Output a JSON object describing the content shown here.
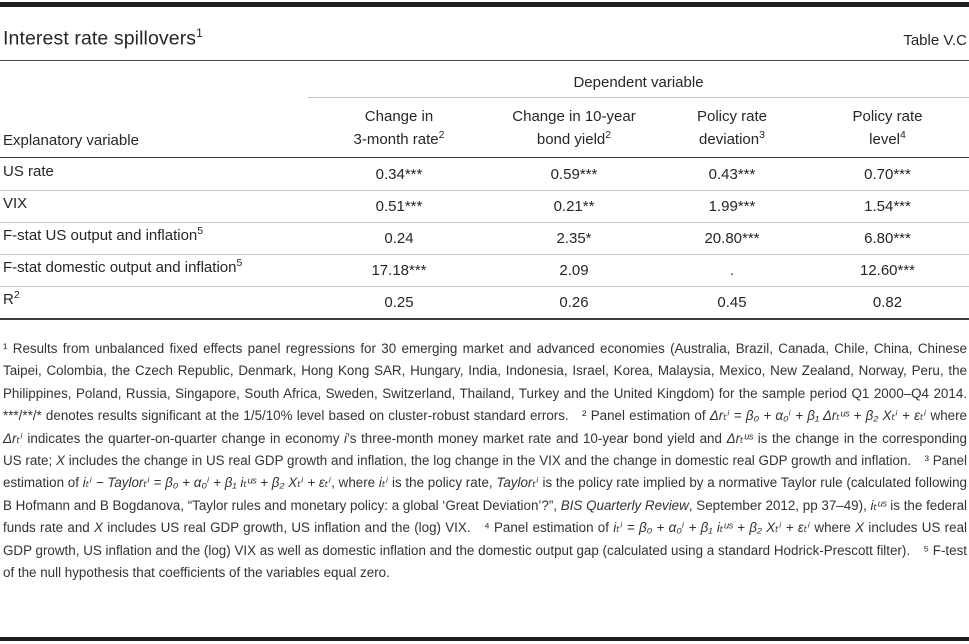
{
  "header": {
    "title": "Interest rate spillovers",
    "title_sup": "1",
    "table_label": "Table V.C"
  },
  "table": {
    "group_header": "Dependent variable",
    "row_header_label": "Explanatory variable",
    "columns": [
      {
        "line1": "Change in",
        "line2": "3-month rate",
        "sup": "2"
      },
      {
        "line1": "Change in 10-year",
        "line2": "bond yield",
        "sup": "2"
      },
      {
        "line1": "Policy rate",
        "line2": "deviation",
        "sup": "3"
      },
      {
        "line1": "Policy rate",
        "line2": "level",
        "sup": "4"
      }
    ],
    "rows": [
      {
        "label": "US rate",
        "sup": "",
        "values": [
          "0.34***",
          "0.59***",
          "0.43***",
          "0.70***"
        ]
      },
      {
        "label": "VIX",
        "sup": "",
        "values": [
          "0.51***",
          "0.21**",
          "1.99***",
          "1.54***"
        ]
      },
      {
        "label": "F-stat US output and inflation",
        "sup": "5",
        "values": [
          "0.24",
          "2.35*",
          "20.80***",
          "6.80***"
        ]
      },
      {
        "label": "F-stat domestic output and inflation",
        "sup": "5",
        "values": [
          "17.18***",
          "2.09",
          ".",
          "12.60***"
        ]
      },
      {
        "label": "R",
        "sup": "2",
        "values": [
          "0.25",
          "0.26",
          "0.45",
          "0.82"
        ]
      }
    ]
  },
  "footnotes": {
    "segments": [
      {
        "italic": false,
        "text": "¹  Results from unbalanced fixed effects panel regressions for 30 emerging market and advanced economies (Australia, Brazil, Canada, Chile, China, Chinese Taipei, Colombia, the Czech Republic, Denmark, Hong Kong SAR, Hungary, India, Indonesia, Israel, Korea, Malaysia, Mexico, New Zealand, Norway, Peru, the Philippines, Poland, Russia, Singapore, South Africa, Sweden, Switzerland, Thailand, Turkey and the United Kingdom) for the sample period Q1 2000–Q4 2014. ***/**/* denotes results significant at the 1/5/10% level based on cluster-robust standard errors.  ²  Panel estimation of "
      },
      {
        "italic": true,
        "text": "Δrₜⁱ = β₀ + α₀ⁱ + β₁ Δrₜᵘˢ + β₂ Xₜⁱ + εₜⁱ"
      },
      {
        "italic": false,
        "text": " where "
      },
      {
        "italic": true,
        "text": "Δrₜⁱ"
      },
      {
        "italic": false,
        "text": " indicates the quarter-on-quarter change in economy "
      },
      {
        "italic": true,
        "text": "i"
      },
      {
        "italic": false,
        "text": "’s three-month money market rate and 10-year bond yield and "
      },
      {
        "italic": true,
        "text": "Δrₜᵘˢ"
      },
      {
        "italic": false,
        "text": " is the change in the corresponding US rate; "
      },
      {
        "italic": true,
        "text": "X"
      },
      {
        "italic": false,
        "text": " includes the change in US real GDP growth and inflation, the log change in the VIX and the change in domestic real GDP growth and inflation.  ³  Panel estimation of "
      },
      {
        "italic": true,
        "text": "iₜⁱ − Taylorₜⁱ = β₀ + α₀ⁱ + β₁ iₜᵘˢ + β₂ Xₜⁱ + εₜⁱ"
      },
      {
        "italic": false,
        "text": ", where "
      },
      {
        "italic": true,
        "text": "iₜⁱ"
      },
      {
        "italic": false,
        "text": " is the policy rate, "
      },
      {
        "italic": true,
        "text": "Taylorₜⁱ"
      },
      {
        "italic": false,
        "text": " is the policy rate implied by a normative Taylor rule (calculated following B Hofmann and B Bogdanova, “Taylor rules and monetary policy: a global ‘Great Deviation’?”, "
      },
      {
        "italic": true,
        "text": "BIS Quarterly Review"
      },
      {
        "italic": false,
        "text": ", September 2012, pp 37–49), "
      },
      {
        "italic": true,
        "text": "iₜᵘˢ"
      },
      {
        "italic": false,
        "text": " is the federal funds rate and "
      },
      {
        "italic": true,
        "text": "X"
      },
      {
        "italic": false,
        "text": " includes US real GDP growth, US inflation and the (log) VIX.  ⁴  Panel estimation of  "
      },
      {
        "italic": true,
        "text": "iₜⁱ = β₀ + α₀ⁱ + β₁ iₜᵘˢ + β₂ Xₜⁱ + εₜⁱ"
      },
      {
        "italic": false,
        "text": " where "
      },
      {
        "italic": true,
        "text": "X"
      },
      {
        "italic": false,
        "text": " includes US real GDP growth, US inflation and the (log) VIX as well as domestic inflation and the domestic output gap (calculated using a standard Hodrick-Prescott filter).  ⁵  F-test of the null hypothesis that coefficients of the variables equal zero."
      }
    ]
  }
}
